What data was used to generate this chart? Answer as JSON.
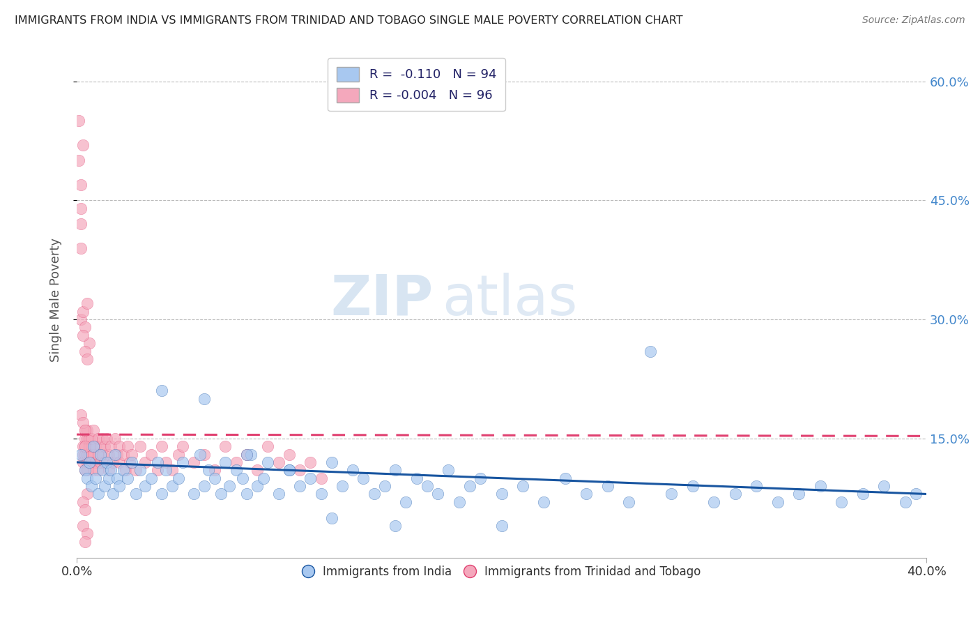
{
  "title": "IMMIGRANTS FROM INDIA VS IMMIGRANTS FROM TRINIDAD AND TOBAGO SINGLE MALE POVERTY CORRELATION CHART",
  "source": "Source: ZipAtlas.com",
  "ylabel": "Single Male Poverty",
  "legend_label_blue": "R =  -0.110   N = 94",
  "legend_label_pink": "R = -0.004   N = 96",
  "legend_label_blue_bottom": "Immigrants from India",
  "legend_label_pink_bottom": "Immigrants from Trinidad and Tobago",
  "color_blue": "#A8C8F0",
  "color_pink": "#F4A8BC",
  "color_blue_line": "#1855A0",
  "color_pink_line": "#E04070",
  "xlim": [
    0.0,
    0.4
  ],
  "ylim": [
    0.0,
    0.65
  ],
  "grid_color": "#BBBBBB",
  "background_color": "#FFFFFF",
  "watermark_zip": "ZIP",
  "watermark_atlas": "atlas",
  "blue_x": [
    0.002,
    0.004,
    0.005,
    0.006,
    0.007,
    0.008,
    0.009,
    0.01,
    0.011,
    0.012,
    0.013,
    0.014,
    0.015,
    0.016,
    0.017,
    0.018,
    0.019,
    0.02,
    0.022,
    0.024,
    0.026,
    0.028,
    0.03,
    0.032,
    0.035,
    0.038,
    0.04,
    0.042,
    0.045,
    0.048,
    0.05,
    0.055,
    0.058,
    0.06,
    0.062,
    0.065,
    0.068,
    0.07,
    0.072,
    0.075,
    0.078,
    0.08,
    0.082,
    0.085,
    0.088,
    0.09,
    0.095,
    0.1,
    0.105,
    0.11,
    0.115,
    0.12,
    0.125,
    0.13,
    0.135,
    0.14,
    0.145,
    0.15,
    0.155,
    0.16,
    0.165,
    0.17,
    0.175,
    0.18,
    0.185,
    0.19,
    0.2,
    0.21,
    0.22,
    0.23,
    0.24,
    0.25,
    0.26,
    0.27,
    0.28,
    0.29,
    0.3,
    0.31,
    0.32,
    0.33,
    0.34,
    0.35,
    0.36,
    0.37,
    0.38,
    0.39,
    0.395,
    0.04,
    0.06,
    0.08,
    0.1,
    0.12,
    0.15,
    0.2
  ],
  "blue_y": [
    0.13,
    0.11,
    0.1,
    0.12,
    0.09,
    0.14,
    0.1,
    0.08,
    0.13,
    0.11,
    0.09,
    0.12,
    0.1,
    0.11,
    0.08,
    0.13,
    0.1,
    0.09,
    0.11,
    0.1,
    0.12,
    0.08,
    0.11,
    0.09,
    0.1,
    0.12,
    0.08,
    0.11,
    0.09,
    0.1,
    0.12,
    0.08,
    0.13,
    0.09,
    0.11,
    0.1,
    0.08,
    0.12,
    0.09,
    0.11,
    0.1,
    0.08,
    0.13,
    0.09,
    0.1,
    0.12,
    0.08,
    0.11,
    0.09,
    0.1,
    0.08,
    0.12,
    0.09,
    0.11,
    0.1,
    0.08,
    0.09,
    0.11,
    0.07,
    0.1,
    0.09,
    0.08,
    0.11,
    0.07,
    0.09,
    0.1,
    0.08,
    0.09,
    0.07,
    0.1,
    0.08,
    0.09,
    0.07,
    0.26,
    0.08,
    0.09,
    0.07,
    0.08,
    0.09,
    0.07,
    0.08,
    0.09,
    0.07,
    0.08,
    0.09,
    0.07,
    0.08,
    0.21,
    0.2,
    0.13,
    0.11,
    0.05,
    0.04,
    0.04
  ],
  "pink_x": [
    0.001,
    0.001,
    0.002,
    0.002,
    0.002,
    0.002,
    0.003,
    0.003,
    0.003,
    0.003,
    0.004,
    0.004,
    0.004,
    0.004,
    0.004,
    0.005,
    0.005,
    0.005,
    0.005,
    0.005,
    0.006,
    0.006,
    0.006,
    0.006,
    0.007,
    0.007,
    0.007,
    0.008,
    0.008,
    0.008,
    0.009,
    0.009,
    0.01,
    0.01,
    0.01,
    0.011,
    0.011,
    0.012,
    0.012,
    0.013,
    0.013,
    0.014,
    0.015,
    0.015,
    0.016,
    0.017,
    0.018,
    0.019,
    0.02,
    0.02,
    0.022,
    0.023,
    0.024,
    0.025,
    0.026,
    0.028,
    0.03,
    0.032,
    0.035,
    0.038,
    0.04,
    0.042,
    0.045,
    0.048,
    0.05,
    0.055,
    0.06,
    0.065,
    0.07,
    0.075,
    0.08,
    0.085,
    0.09,
    0.095,
    0.1,
    0.105,
    0.11,
    0.115,
    0.002,
    0.003,
    0.004,
    0.005,
    0.006,
    0.003,
    0.004,
    0.005,
    0.002,
    0.003,
    0.004,
    0.004,
    0.005,
    0.003,
    0.004,
    0.003,
    0.005,
    0.004
  ],
  "pink_y": [
    0.55,
    0.5,
    0.47,
    0.42,
    0.44,
    0.39,
    0.52,
    0.14,
    0.13,
    0.12,
    0.15,
    0.13,
    0.11,
    0.16,
    0.14,
    0.12,
    0.15,
    0.13,
    0.11,
    0.16,
    0.14,
    0.12,
    0.15,
    0.13,
    0.14,
    0.12,
    0.15,
    0.13,
    0.16,
    0.11,
    0.14,
    0.12,
    0.15,
    0.13,
    0.11,
    0.14,
    0.12,
    0.15,
    0.13,
    0.14,
    0.12,
    0.15,
    0.13,
    0.11,
    0.14,
    0.12,
    0.15,
    0.13,
    0.14,
    0.12,
    0.13,
    0.11,
    0.14,
    0.12,
    0.13,
    0.11,
    0.14,
    0.12,
    0.13,
    0.11,
    0.14,
    0.12,
    0.11,
    0.13,
    0.14,
    0.12,
    0.13,
    0.11,
    0.14,
    0.12,
    0.13,
    0.11,
    0.14,
    0.12,
    0.13,
    0.11,
    0.12,
    0.1,
    0.3,
    0.31,
    0.29,
    0.32,
    0.27,
    0.28,
    0.26,
    0.25,
    0.18,
    0.17,
    0.16,
    0.14,
    0.08,
    0.07,
    0.06,
    0.04,
    0.03,
    0.02
  ]
}
